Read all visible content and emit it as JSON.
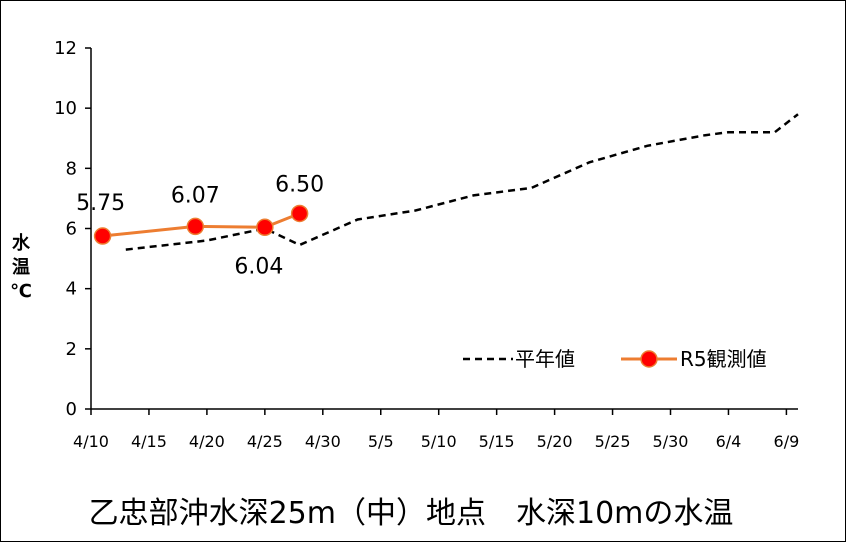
{
  "chart_data": {
    "type": "line",
    "title": "乙忠部沖水深25m（中）地点　水深10mの水温",
    "ylabel": "水温℃",
    "ylabel_chars": [
      "水",
      "温",
      "℃"
    ],
    "ylim": [
      0,
      12
    ],
    "yticks": [
      0,
      2,
      4,
      6,
      8,
      10,
      12
    ],
    "xlim": [
      "4/10",
      "6/10"
    ],
    "xticks": [
      "4/10",
      "4/15",
      "4/20",
      "4/25",
      "4/30",
      "5/5",
      "5/10",
      "5/15",
      "5/20",
      "5/25",
      "5/30",
      "6/4",
      "6/9"
    ],
    "legend_position": "bottom-right",
    "series": [
      {
        "name": "平年値",
        "style": "dashed",
        "color": "#000000",
        "points": [
          {
            "x": "4/13",
            "y": 5.3
          },
          {
            "x": "4/20",
            "y": 5.6
          },
          {
            "x": "4/25",
            "y": 6.0
          },
          {
            "x": "4/28",
            "y": 5.45
          },
          {
            "x": "5/3",
            "y": 6.3
          },
          {
            "x": "5/8",
            "y": 6.6
          },
          {
            "x": "5/13",
            "y": 7.1
          },
          {
            "x": "5/18",
            "y": 7.35
          },
          {
            "x": "5/23",
            "y": 8.2
          },
          {
            "x": "5/28",
            "y": 8.75
          },
          {
            "x": "6/2",
            "y": 9.1
          },
          {
            "x": "6/4",
            "y": 9.2
          },
          {
            "x": "6/8",
            "y": 9.2
          },
          {
            "x": "6/10",
            "y": 9.8
          }
        ]
      },
      {
        "name": "R5観測値",
        "style": "solid",
        "color": "#ED7D31",
        "marker_color": "#FF0000",
        "points": [
          {
            "x": "4/11",
            "y": 5.75,
            "label": "5.75"
          },
          {
            "x": "4/19",
            "y": 6.07,
            "label": "6.07"
          },
          {
            "x": "4/25",
            "y": 6.04,
            "label": "6.04"
          },
          {
            "x": "4/28",
            "y": 6.5,
            "label": "6.50"
          }
        ]
      }
    ]
  }
}
